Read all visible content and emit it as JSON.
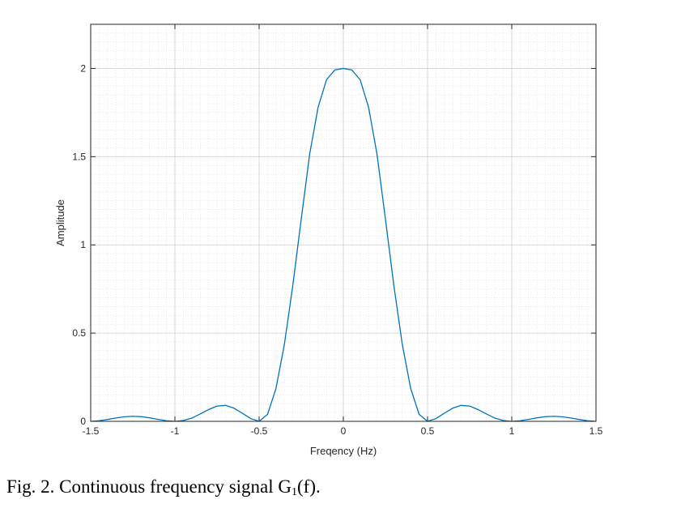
{
  "chart_data": {
    "type": "line",
    "title": "",
    "xlabel": "Freqency (Hz)",
    "ylabel": "Amplitude",
    "xlim": [
      -1.5,
      1.5
    ],
    "ylim": [
      0,
      2.25
    ],
    "xticks": [
      -1.5,
      -1,
      -0.5,
      0,
      0.5,
      1,
      1.5
    ],
    "xtick_labels": [
      "-1.5",
      "-1",
      "-0.5",
      "0",
      "0.5",
      "1",
      "1.5"
    ],
    "yticks": [
      0,
      0.5,
      1,
      1.5,
      2
    ],
    "ytick_labels": [
      "0",
      "0.5",
      "1",
      "1.5",
      "2"
    ],
    "grid": true,
    "minor_grid": true,
    "series": [
      {
        "color": "#0072bd",
        "x": [
          -1.5,
          -1.45,
          -1.4,
          -1.35,
          -1.3,
          -1.25,
          -1.2,
          -1.15,
          -1.1,
          -1.05,
          -1.0,
          -0.95,
          -0.9,
          -0.85,
          -0.8,
          -0.75,
          -0.7,
          -0.65,
          -0.6,
          -0.55,
          -0.5,
          -0.45,
          -0.4,
          -0.35,
          -0.3,
          -0.25,
          -0.2,
          -0.15,
          -0.1,
          -0.05,
          0,
          0.05,
          0.1,
          0.15,
          0.2,
          0.25,
          0.3,
          0.35,
          0.4,
          0.45,
          0.5,
          0.55,
          0.6,
          0.65,
          0.7,
          0.75,
          0.8,
          0.85,
          0.9,
          0.95,
          1.0,
          1.05,
          1.1,
          1.15,
          1.2,
          1.25,
          1.3,
          1.35,
          1.4,
          1.45,
          1.5
        ],
        "y": [
          0.0,
          0.0031,
          0.0106,
          0.0191,
          0.026,
          0.0288,
          0.0266,
          0.0199,
          0.0111,
          0.0034,
          0.0,
          0.0044,
          0.0182,
          0.0418,
          0.0667,
          0.0865,
          0.0905,
          0.075,
          0.046,
          0.0156,
          0.0,
          0.0398,
          0.1858,
          0.436,
          0.7696,
          1.1457,
          1.5136,
          1.7793,
          1.936,
          1.9918,
          2.0,
          1.9918,
          1.936,
          1.7793,
          1.5136,
          1.1457,
          0.7696,
          0.436,
          0.1858,
          0.0398,
          0.0,
          0.0156,
          0.046,
          0.075,
          0.0905,
          0.0865,
          0.0667,
          0.0418,
          0.0182,
          0.0044,
          0.0,
          0.0034,
          0.0111,
          0.0199,
          0.0266,
          0.0288,
          0.026,
          0.0191,
          0.0106,
          0.0031,
          0.0
        ]
      }
    ]
  },
  "caption": {
    "prefix": "Fig.  2. Continuous frequency signal G",
    "subscript": "1",
    "suffix": "(f)."
  }
}
